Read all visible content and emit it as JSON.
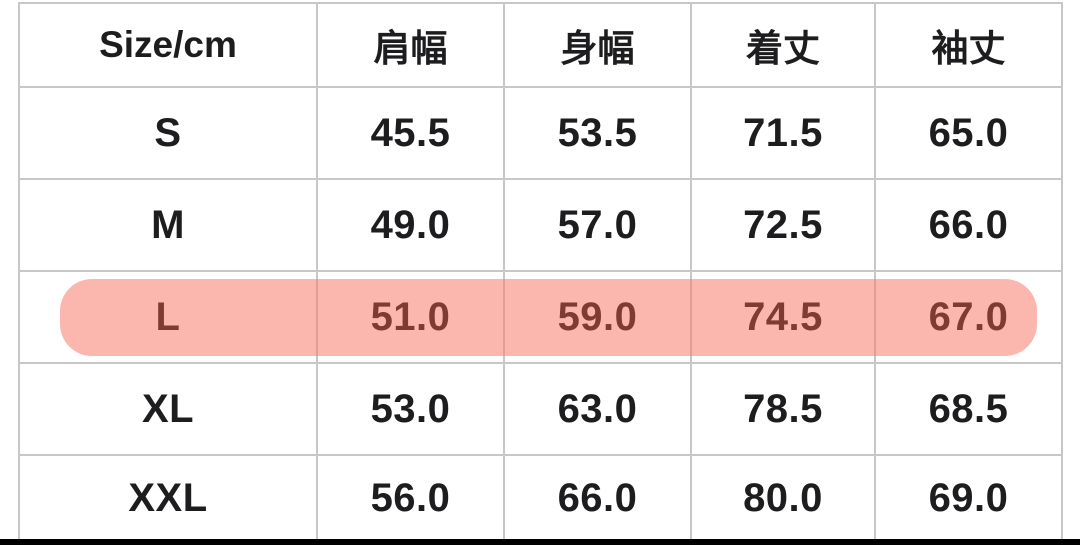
{
  "table": {
    "columns": [
      "Size/cm",
      "肩幅",
      "身幅",
      "着丈",
      "袖丈"
    ],
    "rows": [
      {
        "size": "S",
        "values": [
          "45.5",
          "53.5",
          "71.5",
          "65.0"
        ],
        "highlighted": false
      },
      {
        "size": "M",
        "values": [
          "49.0",
          "57.0",
          "72.5",
          "66.0"
        ],
        "highlighted": false
      },
      {
        "size": "L",
        "values": [
          "51.0",
          "59.0",
          "74.5",
          "67.0"
        ],
        "highlighted": true
      },
      {
        "size": "XL",
        "values": [
          "53.0",
          "63.0",
          "78.5",
          "68.5"
        ],
        "highlighted": false
      },
      {
        "size": "XXL",
        "values": [
          "56.0",
          "66.0",
          "80.0",
          "69.0"
        ],
        "highlighted": false
      }
    ]
  },
  "colors": {
    "highlight": "rgba(248,122,108,0.55)",
    "highlight_text": "#7d3b33",
    "border": "#c7c7c7",
    "text": "#1d1d1f",
    "bottom_bar": "#000000"
  }
}
